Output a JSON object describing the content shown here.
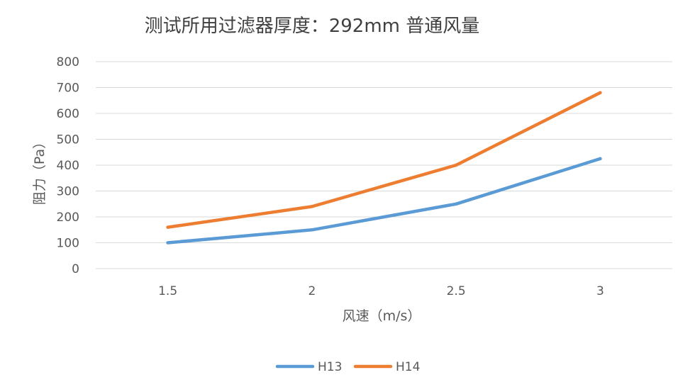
{
  "chart_data": {
    "type": "line",
    "title": "测试所用过滤器厚度：292mm 普通风量",
    "xlabel": "风速（m/s）",
    "ylabel": "阻力（Pa）",
    "categories": [
      "1.5",
      "2",
      "2.5",
      "3"
    ],
    "ylim": [
      0,
      800
    ],
    "yticks": [
      "0",
      "100",
      "200",
      "300",
      "400",
      "500",
      "600",
      "700",
      "800"
    ],
    "grid": "horizontal",
    "legend": "bottom",
    "series": [
      {
        "name": "H13",
        "color": "#5B9BD5",
        "values": [
          100,
          150,
          250,
          425
        ]
      },
      {
        "name": "H14",
        "color": "#ED7D31",
        "values": [
          160,
          240,
          400,
          680
        ]
      }
    ]
  }
}
